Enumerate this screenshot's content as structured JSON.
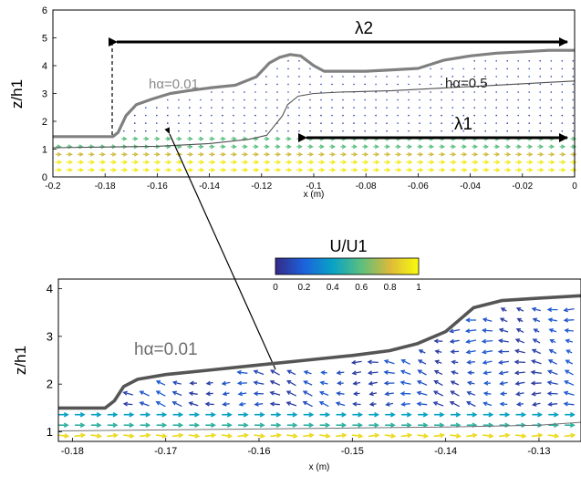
{
  "chart_data": [
    {
      "type": "vector-field",
      "xlabel": "x (m)",
      "ylabel": "z/h1",
      "xlim": [
        -0.2,
        0
      ],
      "ylim": [
        0,
        6
      ],
      "xticks": [
        "-0.2",
        "-0.18",
        "-0.16",
        "-0.14",
        "-0.12",
        "-0.1",
        "-0.08",
        "-0.06",
        "-0.04",
        "-0.02",
        "0"
      ],
      "yticks": [
        "0",
        "1",
        "2",
        "3",
        "4",
        "5",
        "6"
      ],
      "annotations": {
        "lambda2": "λ2",
        "lambda1": "λ1",
        "h001": "hα=0.01",
        "h05": "hα=0.5"
      },
      "series": [
        {
          "name": "hα=0.01",
          "color": "#808080",
          "x": [
            -0.2,
            -0.177,
            -0.175,
            -0.172,
            -0.168,
            -0.162,
            -0.155,
            -0.148,
            -0.14,
            -0.13,
            -0.122,
            -0.117,
            -0.113,
            -0.109,
            -0.105,
            -0.1,
            -0.096,
            -0.09,
            -0.08,
            -0.07,
            -0.06,
            -0.05,
            -0.04,
            -0.03,
            -0.02,
            -0.01,
            0
          ],
          "y": [
            1.45,
            1.45,
            1.6,
            2.2,
            2.6,
            2.8,
            3.0,
            3.1,
            3.2,
            3.3,
            3.6,
            4.1,
            4.3,
            4.4,
            4.35,
            4.0,
            3.8,
            3.8,
            3.8,
            3.85,
            3.9,
            4.2,
            4.35,
            4.45,
            4.5,
            4.55,
            4.55
          ]
        },
        {
          "name": "hα=0.5",
          "color": "#505050",
          "x": [
            -0.2,
            -0.16,
            -0.14,
            -0.125,
            -0.118,
            -0.112,
            -0.11,
            -0.106,
            -0.1,
            -0.09,
            -0.07,
            -0.05,
            -0.03,
            -0.01,
            0
          ],
          "y": [
            1.05,
            1.1,
            1.2,
            1.35,
            1.5,
            2.2,
            2.6,
            2.9,
            3.0,
            3.05,
            3.1,
            3.2,
            3.3,
            3.4,
            3.45
          ]
        }
      ]
    },
    {
      "type": "vector-field",
      "xlabel": "x (m)",
      "ylabel": "z/h1",
      "xlim": [
        -0.1815,
        -0.1255
      ],
      "ylim": [
        0.8,
        4.2
      ],
      "xticks": [
        "-0.18",
        "-0.17",
        "-0.16",
        "-0.15",
        "-0.14",
        "-0.13"
      ],
      "yticks": [
        "1",
        "2",
        "3",
        "4"
      ],
      "colorbar": {
        "label": "U/U1",
        "ticks": [
          "0",
          "0.2",
          "0.4",
          "0.6",
          "0.8",
          "1"
        ],
        "range": [
          0,
          1
        ]
      },
      "annotations": {
        "h001": "hα=0.01"
      },
      "series": [
        {
          "name": "hα=0.01",
          "color": "#555555",
          "x": [
            -0.1815,
            -0.1765,
            -0.1755,
            -0.1745,
            -0.173,
            -0.17,
            -0.165,
            -0.16,
            -0.155,
            -0.15,
            -0.146,
            -0.143,
            -0.14,
            -0.137,
            -0.134,
            -0.13,
            -0.1255
          ],
          "y": [
            1.5,
            1.5,
            1.65,
            1.95,
            2.1,
            2.2,
            2.3,
            2.4,
            2.5,
            2.6,
            2.7,
            2.85,
            3.1,
            3.6,
            3.75,
            3.8,
            3.85
          ]
        },
        {
          "name": "hα=0.5",
          "color": "#707070",
          "x": [
            -0.1815,
            -0.17,
            -0.16,
            -0.15,
            -0.14,
            -0.13,
            -0.1255
          ],
          "y": [
            1.02,
            1.04,
            1.06,
            1.08,
            1.1,
            1.14,
            1.2
          ]
        }
      ]
    }
  ]
}
